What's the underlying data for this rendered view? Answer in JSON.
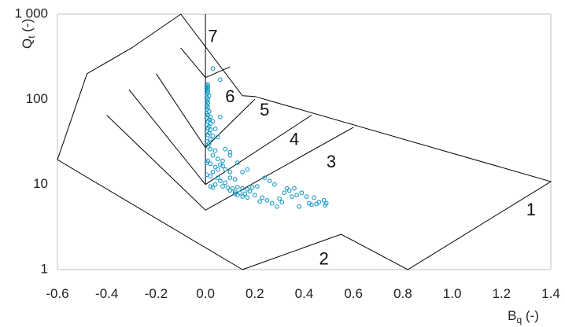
{
  "chart_data": {
    "type": "scatter",
    "title": "",
    "xlabel": "B",
    "xlabel_sub": "q",
    "xlabel_unit": " (-)",
    "ylabel": "Q",
    "ylabel_sub": "t",
    "ylabel_unit": " (-)",
    "x_range": [
      -0.6,
      1.4
    ],
    "y_range": [
      1,
      1000
    ],
    "y_scale": "log",
    "grid": false,
    "legend": "none",
    "x_ticks": [
      {
        "value": -0.6,
        "label": "-0.6"
      },
      {
        "value": -0.4,
        "label": "-0.4"
      },
      {
        "value": -0.2,
        "label": "-0.2"
      },
      {
        "value": 0.0,
        "label": "0.0"
      },
      {
        "value": 0.2,
        "label": "0.2"
      },
      {
        "value": 0.4,
        "label": "0.4"
      },
      {
        "value": 0.6,
        "label": "0.6"
      },
      {
        "value": 0.8,
        "label": "0.8"
      },
      {
        "value": 1.0,
        "label": "1.0"
      },
      {
        "value": 1.2,
        "label": "1.2"
      },
      {
        "value": 1.4,
        "label": "1.4"
      }
    ],
    "y_ticks": [
      {
        "value": 1,
        "label": "1"
      },
      {
        "value": 10,
        "label": "10"
      },
      {
        "value": 100,
        "label": "100"
      },
      {
        "value": 1000,
        "label": "1 000"
      }
    ],
    "colors": {
      "points": "#1a9ac8",
      "boundaries": "#000000",
      "axes": "#bfbfbf"
    },
    "zone_boundaries": [
      [
        [
          0.15,
          1
        ],
        [
          0.55,
          2.6
        ],
        [
          0.82,
          1
        ],
        [
          1.4,
          10.8
        ],
        [
          0.2,
          108
        ],
        [
          0.15,
          110
        ],
        [
          -0.1,
          1000
        ]
      ],
      [
        [
          -0.1,
          1000
        ],
        [
          -0.3,
          400
        ],
        [
          -0.48,
          200
        ],
        [
          -0.6,
          19.5
        ],
        [
          0.15,
          1
        ]
      ],
      [
        [
          0.0,
          1000
        ],
        [
          0.0,
          10
        ]
      ],
      [
        [
          0.0,
          5
        ],
        [
          0.6,
          47
        ]
      ],
      [
        [
          -0.4,
          65
        ],
        [
          0.0,
          5
        ]
      ],
      [
        [
          0.0,
          10
        ],
        [
          0.43,
          65
        ]
      ],
      [
        [
          -0.31,
          130
        ],
        [
          0.0,
          10
        ]
      ],
      [
        [
          0.0,
          27
        ],
        [
          0.2,
          100
        ]
      ],
      [
        [
          -0.2,
          200
        ],
        [
          0.0,
          27
        ]
      ],
      [
        [
          0.0,
          180
        ],
        [
          0.1,
          240
        ]
      ],
      [
        [
          -0.1,
          400
        ],
        [
          0.0,
          180
        ]
      ]
    ],
    "zone_labels": [
      {
        "text": "1",
        "x": 1.32,
        "y": 4.9
      },
      {
        "text": "2",
        "x": 0.48,
        "y": 1.3
      },
      {
        "text": "3",
        "x": 0.51,
        "y": 18
      },
      {
        "text": "4",
        "x": 0.36,
        "y": 33
      },
      {
        "text": "5",
        "x": 0.24,
        "y": 73
      },
      {
        "text": "6",
        "x": 0.1,
        "y": 105
      },
      {
        "text": "7",
        "x": 0.03,
        "y": 530
      }
    ],
    "points": [
      [
        0.03,
        230
      ],
      [
        0.06,
        170
      ],
      [
        0.01,
        150
      ],
      [
        0.005,
        145
      ],
      [
        0.01,
        140
      ],
      [
        0.005,
        135
      ],
      [
        0.01,
        130
      ],
      [
        0.005,
        125
      ],
      [
        0.01,
        120
      ],
      [
        0.005,
        115
      ],
      [
        0.015,
        110
      ],
      [
        0.005,
        105
      ],
      [
        0.01,
        100
      ],
      [
        0.005,
        95
      ],
      [
        0.01,
        90
      ],
      [
        0.005,
        85
      ],
      [
        0.01,
        80
      ],
      [
        0.005,
        76
      ],
      [
        0.015,
        72
      ],
      [
        0.005,
        68
      ],
      [
        0.01,
        65
      ],
      [
        0.02,
        62
      ],
      [
        0.005,
        60
      ],
      [
        0.015,
        58
      ],
      [
        0.01,
        55
      ],
      [
        0.02,
        52
      ],
      [
        0.005,
        50
      ],
      [
        0.015,
        48
      ],
      [
        0.01,
        46
      ],
      [
        0.02,
        44
      ],
      [
        0.03,
        55
      ],
      [
        0.06,
        62
      ],
      [
        0.04,
        45
      ],
      [
        0.005,
        42
      ],
      [
        0.015,
        40
      ],
      [
        0.01,
        38
      ],
      [
        0.03,
        37
      ],
      [
        0.05,
        36
      ],
      [
        0.02,
        34
      ],
      [
        0.005,
        32
      ],
      [
        0.015,
        30
      ],
      [
        0.01,
        28
      ],
      [
        0.02,
        26
      ],
      [
        0.04,
        25
      ],
      [
        0.08,
        26
      ],
      [
        0.1,
        24
      ],
      [
        0.03,
        22
      ],
      [
        0.05,
        20
      ],
      [
        0.01,
        19
      ],
      [
        0.005,
        18
      ],
      [
        0.02,
        17.5
      ],
      [
        0.07,
        19
      ],
      [
        0.1,
        22
      ],
      [
        0.13,
        18
      ],
      [
        0.06,
        17
      ],
      [
        0.07,
        16.5
      ],
      [
        0.04,
        16
      ],
      [
        0.05,
        15
      ],
      [
        0.08,
        15
      ],
      [
        0.03,
        14
      ],
      [
        0.1,
        14
      ],
      [
        0.15,
        14
      ],
      [
        0.17,
        15
      ],
      [
        0.005,
        13
      ],
      [
        0.02,
        12.5
      ],
      [
        0.05,
        12
      ],
      [
        0.1,
        12
      ],
      [
        0.12,
        11.5
      ],
      [
        0.06,
        11
      ],
      [
        0.08,
        10.5
      ],
      [
        0.04,
        10
      ],
      [
        0.02,
        9.5
      ],
      [
        0.03,
        9.2
      ],
      [
        0.07,
        9.5
      ],
      [
        0.09,
        9.2
      ],
      [
        0.11,
        9
      ],
      [
        0.13,
        9.3
      ],
      [
        0.15,
        9
      ],
      [
        0.17,
        8.8
      ],
      [
        0.19,
        9.2
      ],
      [
        0.21,
        9.5
      ],
      [
        0.1,
        8.5
      ],
      [
        0.12,
        8.2
      ],
      [
        0.14,
        8
      ],
      [
        0.16,
        7.8
      ],
      [
        0.18,
        8.3
      ],
      [
        0.13,
        7.5
      ],
      [
        0.15,
        7.2
      ],
      [
        0.17,
        7
      ],
      [
        0.12,
        7.8
      ],
      [
        0.2,
        7.5
      ],
      [
        0.23,
        7
      ],
      [
        0.25,
        6.5
      ],
      [
        0.22,
        6.3
      ],
      [
        0.27,
        6
      ],
      [
        0.29,
        5.5
      ],
      [
        0.3,
        6.8
      ],
      [
        0.31,
        6.2
      ],
      [
        0.32,
        8
      ],
      [
        0.33,
        9
      ],
      [
        0.35,
        7.2
      ],
      [
        0.37,
        7.5
      ],
      [
        0.38,
        5.5
      ],
      [
        0.39,
        8
      ],
      [
        0.41,
        7.2
      ],
      [
        0.42,
        6
      ],
      [
        0.43,
        5.8
      ],
      [
        0.44,
        7
      ],
      [
        0.45,
        5.9
      ],
      [
        0.46,
        6.2
      ],
      [
        0.48,
        6.5
      ],
      [
        0.49,
        6
      ],
      [
        0.485,
        5.7
      ],
      [
        0.26,
        11
      ],
      [
        0.24,
        12
      ],
      [
        0.28,
        10
      ],
      [
        0.34,
        8.5
      ],
      [
        0.36,
        9
      ]
    ]
  }
}
